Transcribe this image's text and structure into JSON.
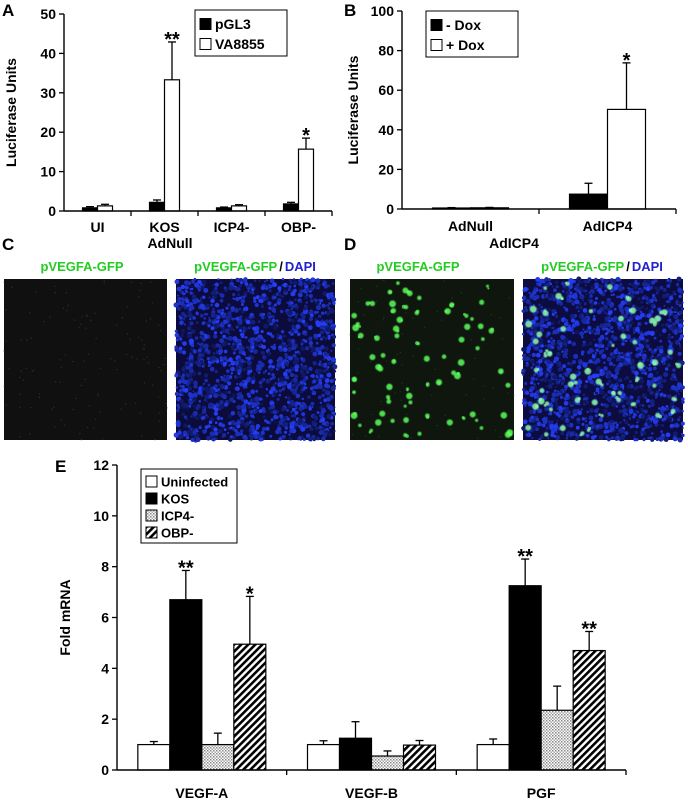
{
  "panels": {
    "A": "A",
    "B": "B",
    "C": "C",
    "D": "D",
    "E": "E"
  },
  "micrographs": {
    "c_title": "AdNull",
    "d_title": "AdICP4",
    "gfp_label": "pVEGFA-GFP",
    "merge_gfp": "pVEGFA-GFP",
    "slash": "/",
    "merge_dapi": "DAPI",
    "colors": {
      "gfp": "#22cc22",
      "dapi": "#2222cc",
      "background": "#101010"
    }
  },
  "chart_data": [
    {
      "id": "A",
      "type": "bar",
      "ylabel": "Luciferase Units",
      "xlabel": "",
      "ylim": [
        0,
        50
      ],
      "yticks": [
        "0",
        "10",
        "20",
        "30",
        "40",
        "50"
      ],
      "categories": [
        "UI",
        "KOS",
        "ICP4-",
        "OBP-"
      ],
      "series": [
        {
          "name": "pGL3",
          "fill": "#000000",
          "values": [
            0.8,
            2.2,
            0.8,
            1.8
          ],
          "errors": [
            0.3,
            0.6,
            0.2,
            0.4
          ]
        },
        {
          "name": "VA8855",
          "fill": "#ffffff",
          "values": [
            1.3,
            33.3,
            1.3,
            15.7
          ],
          "errors": [
            0.4,
            9.6,
            0.3,
            2.8
          ]
        }
      ],
      "annotations": [
        {
          "category": "KOS",
          "series": "VA8855",
          "text": "**"
        },
        {
          "category": "OBP-",
          "series": "VA8855",
          "text": "*"
        }
      ],
      "legend": "top-right"
    },
    {
      "id": "B",
      "type": "bar",
      "ylabel": "Luciferase Units",
      "xlabel": "",
      "ylim": [
        0,
        100
      ],
      "yticks": [
        "0",
        "20",
        "40",
        "60",
        "80",
        "100"
      ],
      "categories": [
        "AdNull",
        "AdICP4"
      ],
      "series": [
        {
          "name": "- Dox",
          "fill": "#000000",
          "values": [
            0.5,
            7.5
          ],
          "errors": [
            0.2,
            5.5
          ]
        },
        {
          "name": "+ Dox",
          "fill": "#ffffff",
          "values": [
            0.6,
            50.3
          ],
          "errors": [
            0.2,
            23.5
          ]
        }
      ],
      "annotations": [
        {
          "category": "AdICP4",
          "series": "+ Dox",
          "text": "*"
        }
      ],
      "legend": "top-left"
    },
    {
      "id": "E",
      "type": "bar",
      "ylabel": "Fold mRNA",
      "xlabel": "",
      "ylim": [
        0,
        12
      ],
      "yticks": [
        "0",
        "2",
        "4",
        "6",
        "8",
        "10",
        "12"
      ],
      "categories": [
        "VEGF-A",
        "VEGF-B",
        "PGF"
      ],
      "series": [
        {
          "name": "Uninfected",
          "fill": "white",
          "values": [
            1.0,
            1.0,
            1.0
          ],
          "errors": [
            0.12,
            0.15,
            0.22
          ]
        },
        {
          "name": "KOS",
          "fill": "black",
          "values": [
            6.7,
            1.25,
            7.25
          ],
          "errors": [
            1.15,
            0.65,
            1.05
          ]
        },
        {
          "name": "ICP4-",
          "fill": "dots",
          "values": [
            1.0,
            0.55,
            2.35
          ],
          "errors": [
            0.45,
            0.2,
            0.95
          ]
        },
        {
          "name": "OBP-",
          "fill": "hatch",
          "values": [
            4.95,
            0.98,
            4.7
          ],
          "errors": [
            1.88,
            0.18,
            0.75
          ]
        }
      ],
      "annotations": [
        {
          "category": "VEGF-A",
          "series": "KOS",
          "text": "**"
        },
        {
          "category": "VEGF-A",
          "series": "OBP-",
          "text": "*"
        },
        {
          "category": "PGF",
          "series": "KOS",
          "text": "**"
        },
        {
          "category": "PGF",
          "series": "OBP-",
          "text": "**"
        }
      ],
      "legend": "top-left"
    }
  ]
}
